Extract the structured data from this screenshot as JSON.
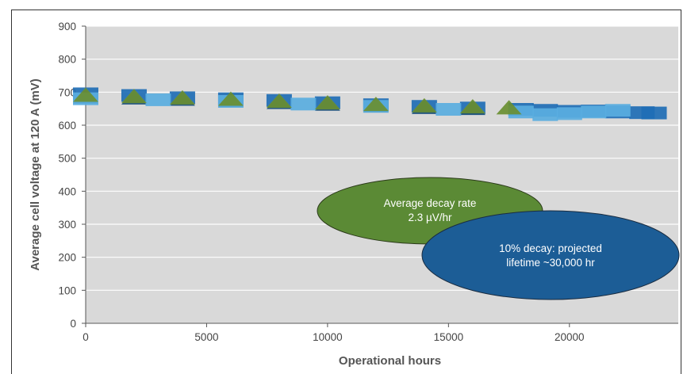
{
  "chart_data": {
    "type": "scatter",
    "xlabel": "Operational hours",
    "ylabel": "Average cell voltage at 120 A (mV)",
    "xlim": [
      0,
      24500
    ],
    "ylim": [
      0,
      900
    ],
    "x_ticks": [
      0,
      5000,
      10000,
      15000,
      20000
    ],
    "y_ticks": [
      0,
      100,
      200,
      300,
      400,
      500,
      600,
      700,
      800,
      900
    ],
    "grid": true,
    "legend": "none",
    "colors": {
      "plot_background": "#d9d9d9",
      "gridline": "#ffffff",
      "series_dark_blue": "#1f6eb5",
      "series_navy": "#1a4f7a",
      "series_light_blue": "#5aaee0",
      "series_green": "#6a8f32",
      "annotation_green": "#5b8a35",
      "annotation_blue": "#1c5d96"
    },
    "series": [
      {
        "color": "#1f6eb5",
        "x": [
          0,
          2000,
          4000,
          6000,
          8000,
          10000,
          12000,
          14000,
          16000,
          18000,
          19000,
          20000,
          21000,
          22000,
          23000,
          23500
        ],
        "values": [
          695,
          690,
          683,
          680,
          675,
          668,
          662,
          657,
          652,
          648,
          645,
          642,
          643,
          640,
          638,
          637
        ]
      },
      {
        "color": "#1a4f7a",
        "x": [
          0,
          2000,
          4000,
          6000,
          8000,
          10000,
          12000,
          14000,
          16000
        ],
        "values": [
          685,
          682,
          678,
          674,
          668,
          663,
          658,
          653,
          650
        ]
      },
      {
        "color": "#5aaee0",
        "x": [
          0,
          3000,
          6000,
          9000,
          12000,
          15000,
          18000,
          19000,
          20000,
          21000,
          22000
        ],
        "values": [
          680,
          677,
          672,
          664,
          657,
          648,
          640,
          632,
          635,
          640,
          645
        ]
      },
      {
        "color": "#6a8f32",
        "x": [
          0,
          2000,
          4000,
          6000,
          8000,
          10000,
          12000,
          14000,
          16000,
          17500
        ],
        "values": [
          690,
          686,
          682,
          678,
          672,
          667,
          662,
          658,
          655,
          652
        ]
      }
    ],
    "annotations": [
      {
        "line1": "Average decay rate",
        "line2": "2.3 µV/hr",
        "color": "#5b8a35"
      },
      {
        "line1": "10% decay: projected",
        "line2": "lifetime ~30,000 hr",
        "color": "#1c5d96"
      }
    ]
  }
}
